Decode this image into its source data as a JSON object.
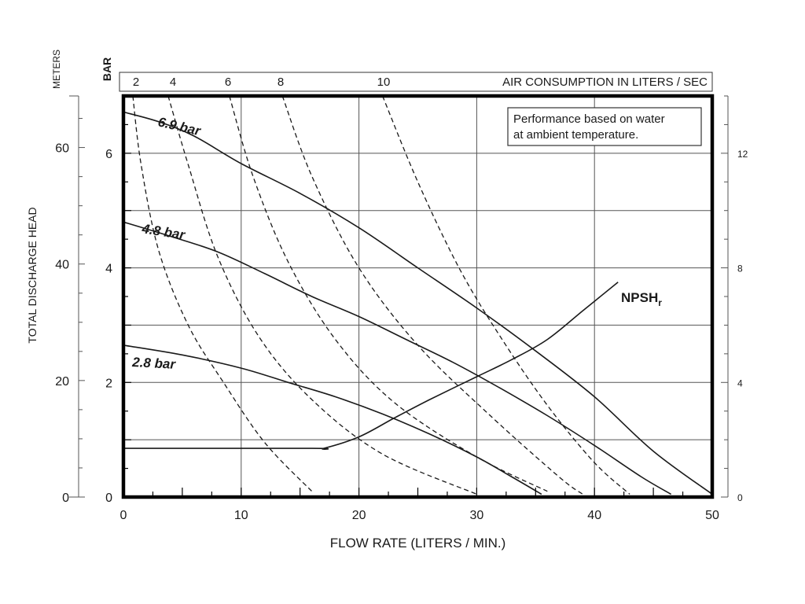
{
  "chart_data": {
    "type": "line",
    "title": "",
    "note": [
      "Performance based on water",
      "at ambient temperature."
    ],
    "xlabel": "FLOW RATE (LITERS / MIN.)",
    "xlim": [
      0,
      50
    ],
    "x_ticks": [
      0,
      10,
      20,
      30,
      40,
      50
    ],
    "y_bar_label": "BAR",
    "y_bar_lim": [
      0,
      7
    ],
    "y_bar_ticks": [
      0,
      2,
      4,
      6
    ],
    "y_meters_label": "METERS",
    "y_meters_title": "TOTAL DISCHARGE HEAD",
    "y_meters_ticks": [
      0,
      20,
      40,
      60
    ],
    "y_right_ticks": [
      0,
      4,
      8,
      12
    ],
    "y_right_lim": [
      0,
      14
    ],
    "air_axis_label": "AIR CONSUMPTION IN LITERS / SEC",
    "air_ticks": [
      "2",
      "4",
      "6",
      "8",
      "10"
    ],
    "grid": true,
    "pressure_curves": [
      {
        "name": "6.9 bar",
        "x": [
          0,
          3,
          6,
          10,
          15,
          20,
          25,
          30,
          35,
          40,
          45,
          50
        ],
        "y": [
          6.72,
          6.55,
          6.3,
          5.82,
          5.3,
          4.7,
          4.0,
          3.3,
          2.55,
          1.75,
          0.8,
          0.05
        ]
      },
      {
        "name": "4.8 bar",
        "x": [
          0,
          4,
          8,
          12,
          16,
          20,
          24,
          28,
          32,
          36,
          40,
          44,
          46.5
        ],
        "y": [
          4.8,
          4.55,
          4.28,
          3.9,
          3.5,
          3.15,
          2.75,
          2.35,
          1.9,
          1.42,
          0.9,
          0.35,
          0.05
        ]
      },
      {
        "name": "2.8 bar",
        "x": [
          0,
          5,
          10,
          14,
          18,
          22,
          26,
          30,
          33,
          35.5
        ],
        "y": [
          2.65,
          2.48,
          2.25,
          2.0,
          1.75,
          1.45,
          1.1,
          0.7,
          0.35,
          0.05
        ]
      },
      {
        "name": "NPSHr",
        "x": [
          0,
          16,
          17,
          20,
          23,
          26,
          30,
          33,
          36,
          39,
          42
        ],
        "y": [
          0.85,
          0.85,
          0.85,
          1.05,
          1.38,
          1.7,
          2.1,
          2.4,
          2.75,
          3.25,
          3.75
        ]
      }
    ],
    "air_curves": [
      {
        "name": "2",
        "x": [
          0.8,
          1.5,
          3,
          5.5,
          8.5,
          12,
          16
        ],
        "y": [
          7.0,
          5.8,
          4.3,
          3.0,
          2.0,
          0.95,
          0.1
        ]
      },
      {
        "name": "4",
        "x": [
          3.8,
          5.5,
          8,
          11.5,
          16,
          22,
          30
        ],
        "y": [
          7.0,
          5.8,
          4.2,
          2.8,
          1.7,
          0.75,
          0.05
        ]
      },
      {
        "name": "6",
        "x": [
          9,
          11,
          14,
          18,
          23,
          30,
          36
        ],
        "y": [
          7.0,
          5.6,
          4.1,
          2.75,
          1.65,
          0.7,
          0.1
        ]
      },
      {
        "name": "8",
        "x": [
          13.5,
          16,
          20,
          25,
          31,
          37,
          39
        ],
        "y": [
          7.0,
          5.6,
          4.0,
          2.65,
          1.45,
          0.35,
          0.05
        ]
      },
      {
        "name": "10",
        "x": [
          22,
          25,
          28.5,
          32,
          36,
          40,
          43
        ],
        "y": [
          7.0,
          5.5,
          4.0,
          2.8,
          1.6,
          0.6,
          0.05
        ]
      }
    ]
  }
}
